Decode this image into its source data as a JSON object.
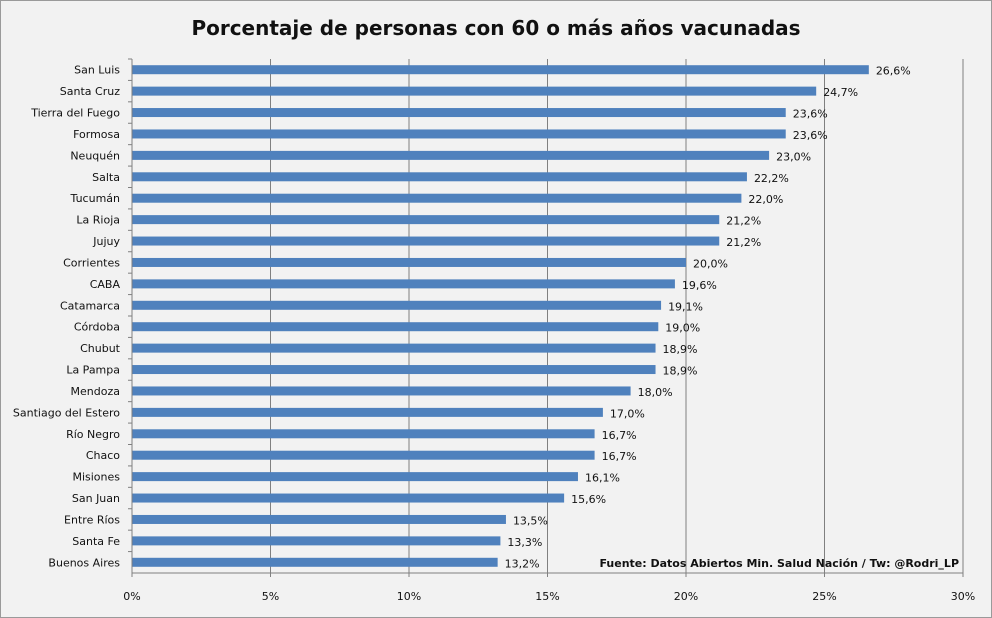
{
  "chart_data": {
    "type": "bar",
    "orientation": "horizontal",
    "title": "Porcentaje de personas con 60 o más años vacunadas",
    "source_note": "Fuente: Datos Abiertos Min. Salud Nación / Tw: @Rodri_LP",
    "categories": [
      "San Luis",
      "Santa Cruz",
      "Tierra del Fuego",
      "Formosa",
      "Neuquén",
      "Salta",
      "Tucumán",
      "La Rioja",
      "Jujuy",
      "Corrientes",
      "CABA",
      "Catamarca",
      "Córdoba",
      "Chubut",
      "La Pampa",
      "Mendoza",
      "Santiago del Estero",
      "Río Negro",
      "Chaco",
      "Misiones",
      "San Juan",
      "Entre Ríos",
      "Santa Fe",
      "Buenos Aires"
    ],
    "values": [
      26.6,
      24.7,
      23.6,
      23.6,
      23.0,
      22.2,
      22.0,
      21.2,
      21.2,
      20.0,
      19.6,
      19.1,
      19.0,
      18.9,
      18.9,
      18.0,
      17.0,
      16.7,
      16.7,
      16.1,
      15.6,
      13.5,
      13.3,
      13.2
    ],
    "value_labels": [
      "26,6%",
      "24,7%",
      "23,6%",
      "23,6%",
      "23,0%",
      "22,2%",
      "22,0%",
      "21,2%",
      "21,2%",
      "20,0%",
      "19,6%",
      "19,1%",
      "19,0%",
      "18,9%",
      "18,9%",
      "18,0%",
      "17,0%",
      "16,7%",
      "16,7%",
      "16,1%",
      "15,6%",
      "13,5%",
      "13,3%",
      "13,2%"
    ],
    "xlim": [
      0,
      30
    ],
    "ticks": [
      0,
      5,
      10,
      15,
      20,
      25,
      30
    ],
    "tick_labels": [
      "0%",
      "5%",
      "10%",
      "15%",
      "20%",
      "25%",
      "30%"
    ],
    "xlabel": "",
    "ylabel": "",
    "grid": true,
    "bar_color": "#4f81bd"
  }
}
